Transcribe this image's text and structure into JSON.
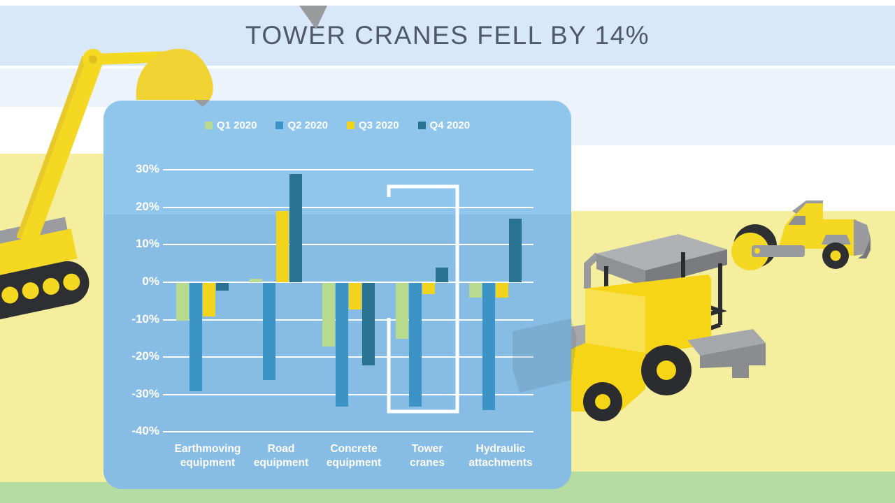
{
  "title": {
    "text": "TOWER CRANES FELL BY 14%"
  },
  "chart_data": {
    "type": "bar",
    "title": "",
    "xlabel": "",
    "ylabel": "",
    "categories": [
      "Earthmoving equipment",
      "Road equipment",
      "Concrete equipment",
      "Tower cranes",
      "Hydraulic attachments"
    ],
    "category_lines": [
      [
        "Earthmoving",
        "equipment"
      ],
      [
        "Road",
        "equipment"
      ],
      [
        "Concrete",
        "equipment"
      ],
      [
        "Tower",
        "cranes"
      ],
      [
        "Hydraulic",
        "attachments"
      ]
    ],
    "series": [
      {
        "name": "Q1 2020",
        "color": "#b8da8e",
        "values": [
          -10,
          1,
          -17,
          -15,
          -4
        ]
      },
      {
        "name": "Q2 2020",
        "color": "#3b93c6",
        "values": [
          -29,
          -26,
          -33,
          -33,
          -34
        ]
      },
      {
        "name": "Q3 2020",
        "color": "#f2d41c",
        "values": [
          -9,
          19,
          -7,
          -3,
          -4
        ]
      },
      {
        "name": "Q4 2020",
        "color": "#2a7292",
        "values": [
          -2,
          29,
          -22,
          4,
          17
        ]
      }
    ],
    "y_ticks": [
      "30%",
      "20%",
      "10%",
      "0%",
      "-10%",
      "-20%",
      "-30%",
      "-40%"
    ],
    "y_tick_values": [
      30,
      20,
      10,
      0,
      -10,
      -20,
      -30,
      -40
    ],
    "ylim": [
      -40,
      30
    ],
    "grid": true,
    "legend_position": "top",
    "highlight": {
      "category": "Tower cranes",
      "shape": "open-white-rectangle"
    }
  },
  "scene": {
    "illustrations": [
      "excavator",
      "paver-machine",
      "road-roller"
    ],
    "ground": "construction-site"
  },
  "colors": {
    "banner": "#d9e8f8",
    "light_band": "#ecf3fb",
    "ground_yellow": "#f4ee9e",
    "ground_green": "#b5dda2",
    "panel_top": "#90c5ec",
    "panel_bottom": "#87bde4",
    "gridline": "#ffffff",
    "axis_text": "#ffffff",
    "title_text": "#4e5a68",
    "machine_yellow": "#f5d821",
    "machine_gray": "#9a9b9e",
    "machine_dark": "#2e2f33",
    "highlight_stroke": "#ffffff"
  }
}
